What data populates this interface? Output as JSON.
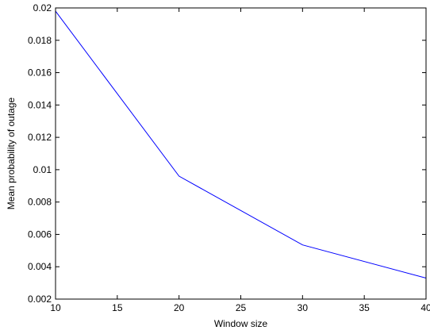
{
  "chart_data": {
    "type": "line",
    "xlabel": "Window size",
    "ylabel": "Mean probability of outage",
    "xlim": [
      10,
      40
    ],
    "ylim": [
      0.002,
      0.02
    ],
    "xticks": [
      10,
      15,
      20,
      25,
      30,
      35,
      40
    ],
    "yticks": [
      0.002,
      0.004,
      0.006,
      0.008,
      0.01,
      0.012,
      0.014,
      0.016,
      0.018,
      0.02
    ],
    "xtick_labels": [
      "10",
      "15",
      "20",
      "25",
      "30",
      "35",
      "40"
    ],
    "ytick_labels": [
      "0.002",
      "0.004",
      "0.006",
      "0.008",
      "0.01",
      "0.012",
      "0.014",
      "0.016",
      "0.018",
      "0.02"
    ],
    "grid": false,
    "legend": false,
    "series": [
      {
        "color": "#0000ff",
        "x": [
          10,
          20,
          30,
          40
        ],
        "y": [
          0.0198,
          0.0096,
          0.00535,
          0.0033
        ]
      }
    ]
  }
}
